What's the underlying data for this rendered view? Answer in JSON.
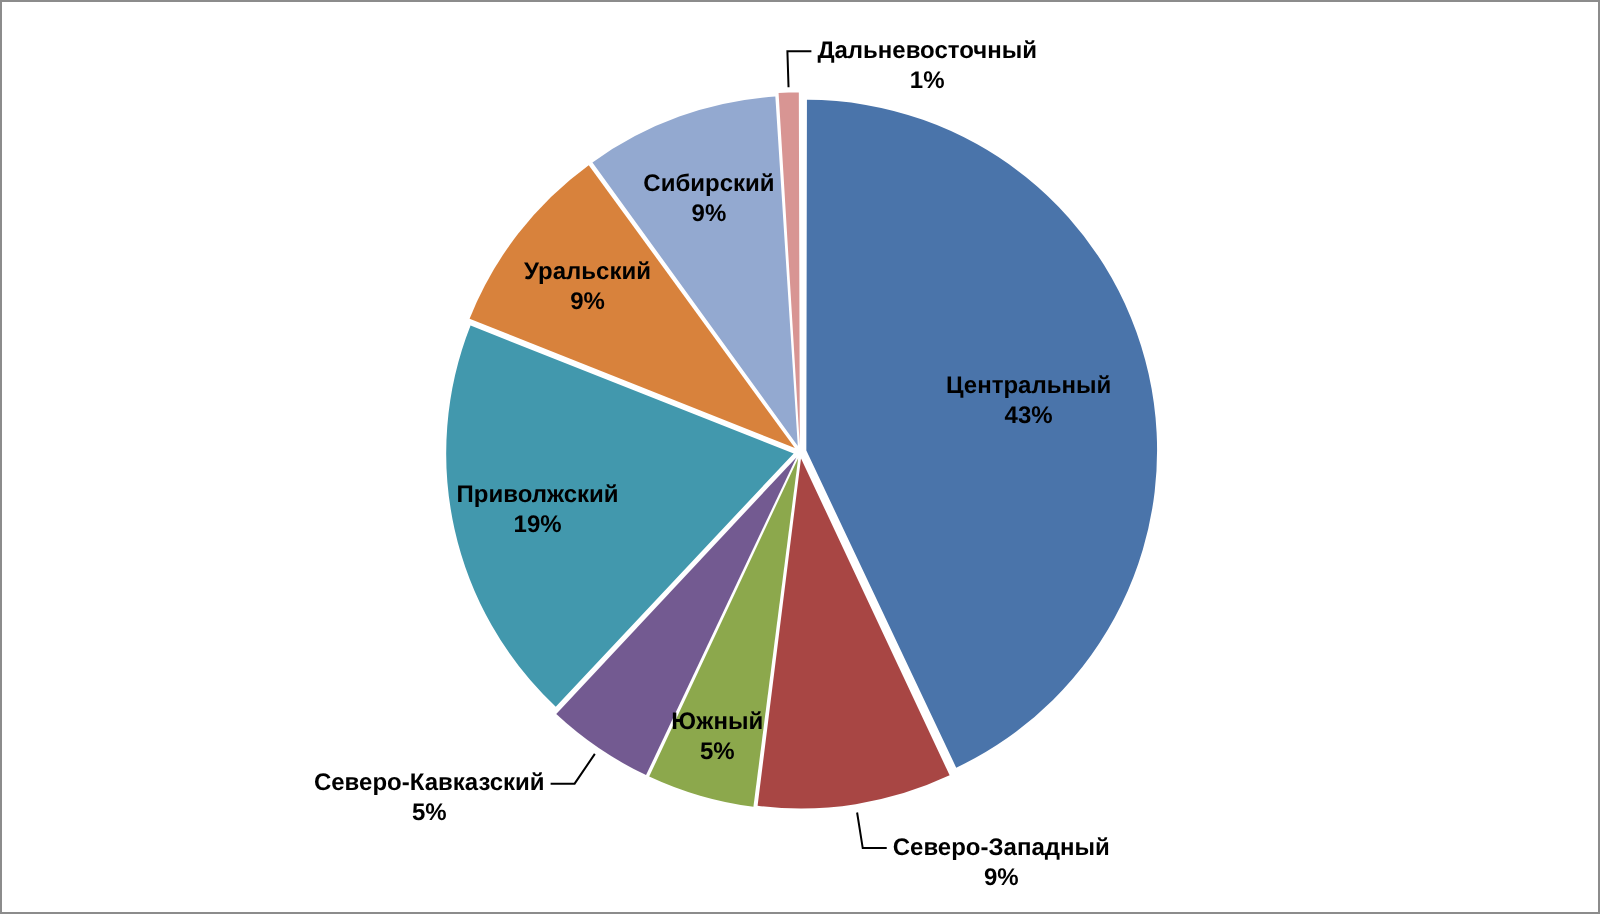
{
  "chart_data": {
    "type": "pie",
    "categories": [
      "Центральный",
      "Северо-Западный",
      "Южный",
      "Северо-Кавказский",
      "Приволжский",
      "Уральский",
      "Сибирский",
      "Дальневосточный"
    ],
    "values": [
      43,
      9,
      5,
      5,
      19,
      9,
      9,
      1
    ],
    "value_labels": [
      "43%",
      "9%",
      "5%",
      "5%",
      "19%",
      "9%",
      "9%",
      "1%"
    ],
    "colors": [
      "#4a74aa",
      "#a84644",
      "#8ca84c",
      "#735a91",
      "#4298ad",
      "#d8823c",
      "#93a9d0",
      "#d89593"
    ]
  }
}
